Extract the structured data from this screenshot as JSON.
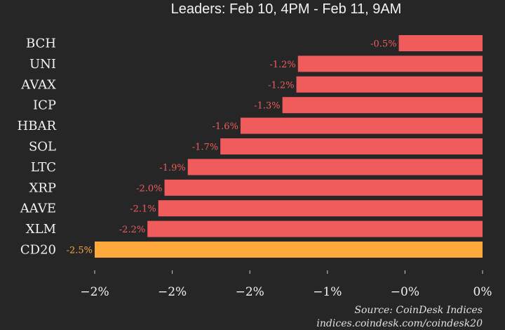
{
  "chart_data": {
    "type": "bar",
    "orientation": "horizontal",
    "subtitle": "Leaders: Feb 10, 4PM - Feb 11, 9AM",
    "categories": [
      "BCH",
      "UNI",
      "AVAX",
      "ICP",
      "HBAR",
      "SOL",
      "LTC",
      "XRP",
      "AAVE",
      "XLM",
      "CD20"
    ],
    "values": [
      -0.54,
      -1.19,
      -1.2,
      -1.29,
      -1.56,
      -1.69,
      -1.9,
      -2.05,
      -2.09,
      -2.16,
      -2.5
    ],
    "data_labels": [
      "-0.5%",
      "-1.2%",
      "-1.2%",
      "-1.3%",
      "-1.6%",
      "-1.7%",
      "-1.9%",
      "-2.0%",
      "-2.1%",
      "-2.2%",
      "-2.5%"
    ],
    "xlim": [
      -2.5,
      0
    ],
    "x_ticks": [
      -2.5,
      -2.0,
      -1.5,
      -1.0,
      -0.5,
      0
    ],
    "x_tick_labels": [
      "−2%",
      "−2%",
      "−2%",
      "−1%",
      "−0%",
      "0%"
    ],
    "grid": false,
    "colors": {
      "background": "#262626",
      "bar": "#f05c5c",
      "index_bar": "#ffa93c",
      "text": "#f2f2f2"
    },
    "highlight_category": "CD20"
  },
  "footer": {
    "source": "Source: CoinDesk Indices",
    "url": "indices.coindesk.com/coindesk20"
  }
}
